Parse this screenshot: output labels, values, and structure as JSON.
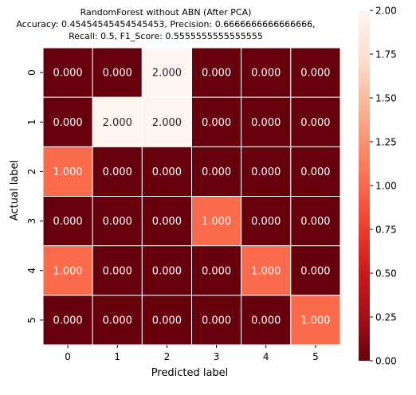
{
  "chart_data": {
    "type": "heatmap",
    "title_lines": [
      "RandomForest without ABN (After PCA)",
      "Accuracy: 0.45454545454545453, Precision: 0.6666666666666666,",
      "Recall: 0.5, F1_Score: 0.5555555555555555"
    ],
    "xlabel": "Predicted label",
    "ylabel": "Actual label",
    "x_categories": [
      "0",
      "1",
      "2",
      "3",
      "4",
      "5"
    ],
    "y_categories": [
      "0",
      "1",
      "2",
      "3",
      "4",
      "5"
    ],
    "values": [
      [
        0,
        0,
        2,
        0,
        0,
        0
      ],
      [
        0,
        2,
        2,
        0,
        0,
        0
      ],
      [
        1,
        0,
        0,
        0,
        0,
        0
      ],
      [
        0,
        0,
        0,
        1,
        0,
        0
      ],
      [
        1,
        0,
        0,
        0,
        1,
        0
      ],
      [
        0,
        0,
        0,
        0,
        0,
        1
      ]
    ],
    "value_format": "0.000",
    "colormap": "Reds_r",
    "vmin": 0,
    "vmax": 2,
    "colorbar_ticks": [
      "0.00",
      "0.25",
      "0.50",
      "0.75",
      "1.00",
      "1.25",
      "1.50",
      "1.75",
      "2.00"
    ],
    "colors": {
      "low": "#67000d",
      "mid": "#fb6a4a",
      "high": "#fff5f0",
      "cell_border": "#ffffff"
    }
  }
}
